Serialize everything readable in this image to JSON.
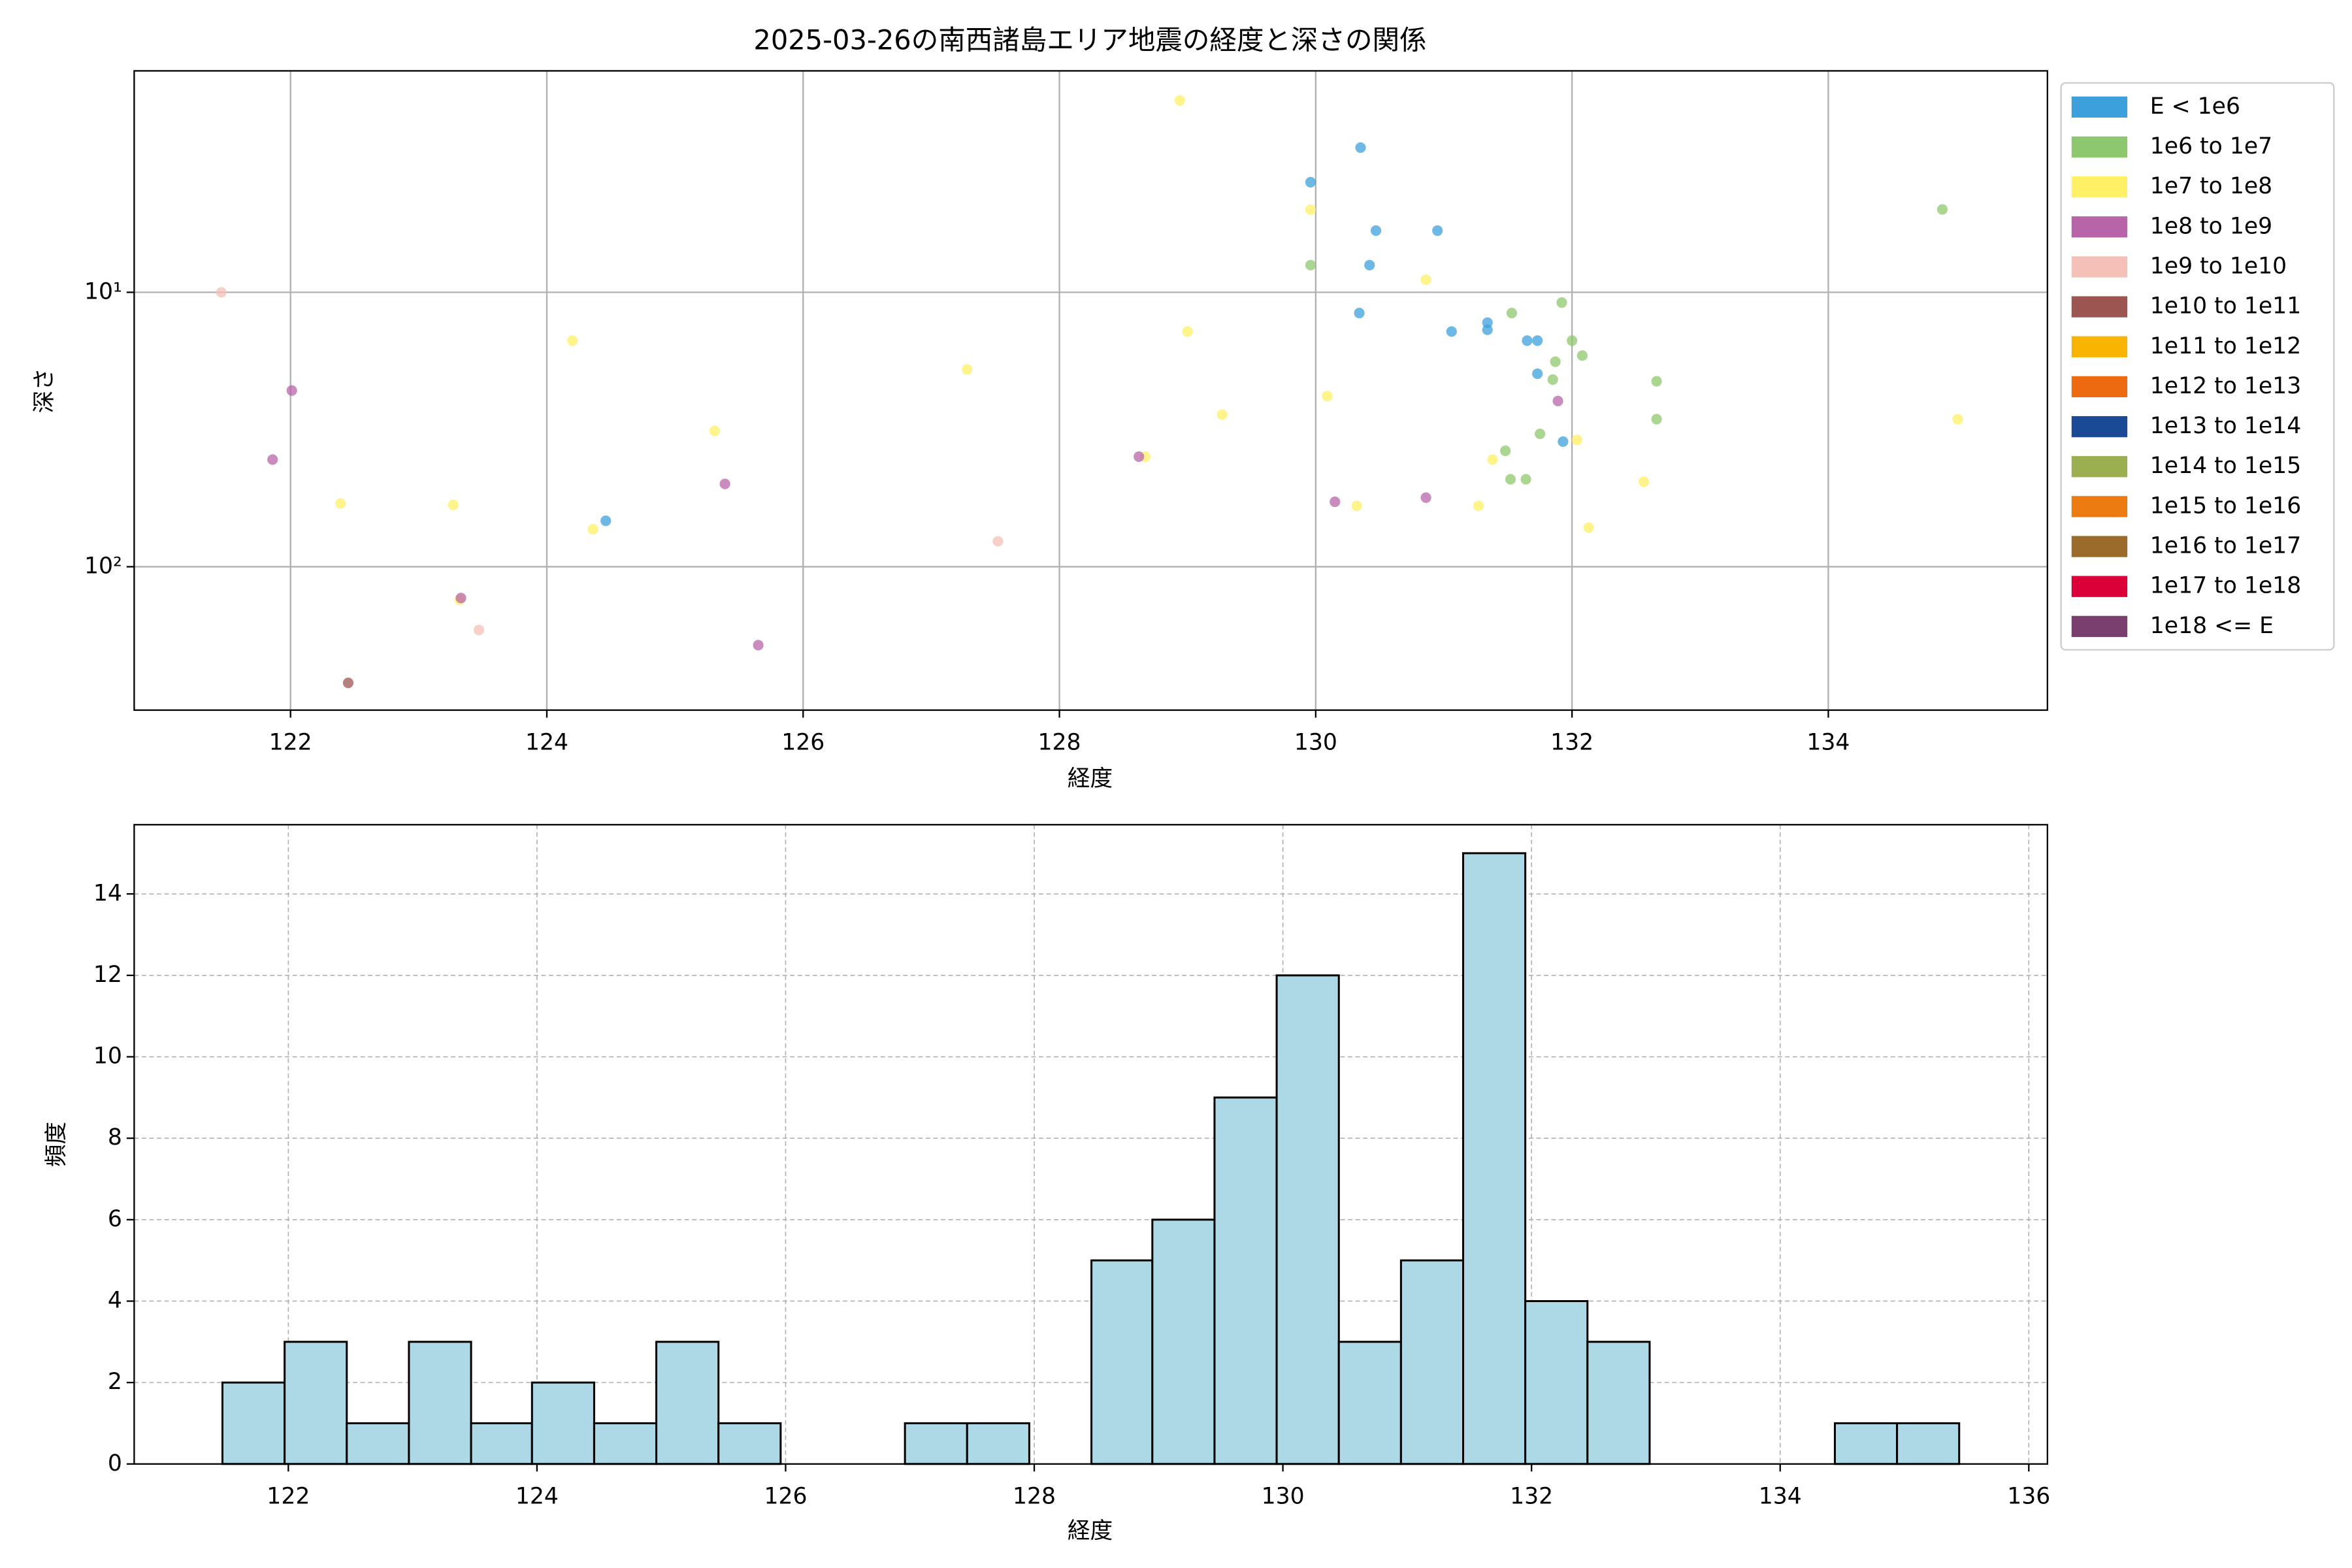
{
  "chart_data": [
    {
      "type": "scatter",
      "title": "2025-03-26の南西諸島エリア地震の経度と深さの関係",
      "x_label": "経度",
      "y_label": "深さ",
      "xlim": [
        120.78,
        135.71
      ],
      "xticks": [
        122,
        124,
        126,
        128,
        130,
        132,
        134
      ],
      "ylim": [
        1.56,
        333
      ],
      "y_log": true,
      "y_inverted": true,
      "yticks": [
        {
          "value": 10,
          "label": "10¹"
        },
        {
          "value": 100,
          "label": "10²"
        }
      ],
      "grid": true,
      "legend": "outside-right",
      "series": [
        {
          "name": "E < 1e6",
          "color": "#3ca0dc",
          "x": [
            130.35,
            129.96,
            130.47,
            130.95,
            130.42,
            130.34,
            131.06,
            131.34,
            131.34,
            131.65,
            131.73,
            131.73,
            131.93,
            124.46
          ],
          "values": [
            2.97,
            3.97,
            5.96,
            5.96,
            7.96,
            11.9,
            13.9,
            12.9,
            13.7,
            15.0,
            15.0,
            19.8,
            35,
            68
          ]
        },
        {
          "name": "1e6 to 1e7",
          "color": "#8ec86e",
          "x": [
            134.89,
            129.96,
            131.92,
            131.53,
            132.0,
            132.08,
            131.87,
            131.85,
            132.66,
            132.66,
            131.75,
            131.48,
            131.52,
            131.64
          ],
          "values": [
            4.99,
            7.96,
            10.9,
            11.9,
            15.0,
            17.0,
            17.9,
            20.8,
            21.1,
            29,
            32.8,
            37.8,
            48,
            48
          ]
        },
        {
          "name": "1e7 to 1e8",
          "color": "#fff066",
          "x": [
            128.94,
            129.96,
            130.86,
            129.0,
            124.2,
            127.28,
            130.09,
            129.27,
            135.01,
            125.31,
            132.04,
            131.38,
            128.67,
            132.56,
            122.39,
            123.27,
            130.32,
            131.27,
            124.36,
            132.13,
            123.32
          ],
          "values": [
            2.0,
            5.0,
            9.0,
            13.9,
            15.0,
            19.1,
            23.9,
            27.9,
            29,
            32,
            34.5,
            40.7,
            39.7,
            49,
            58.8,
            59.5,
            60,
            60,
            73,
            72,
            132
          ]
        },
        {
          "name": "1e8 to 1e9",
          "color": "#b864a8",
          "x": [
            122.01,
            131.89,
            121.86,
            128.62,
            125.39,
            130.15,
            130.86,
            123.33,
            125.65
          ],
          "values": [
            22.8,
            24.9,
            40.7,
            39.7,
            49.9,
            58,
            56,
            130,
            193
          ]
        },
        {
          "name": "1e9 to 1e10",
          "color": "#f5c0b8",
          "x": [
            121.46,
            127.52,
            123.47
          ],
          "values": [
            10,
            80.8,
            170
          ]
        },
        {
          "name": "1e10 to 1e11",
          "color": "#9c5550",
          "x": [
            122.45
          ],
          "values": [
            265
          ]
        },
        {
          "name": "1e11 to 1e12",
          "color": "#f8b400",
          "x": [],
          "values": []
        },
        {
          "name": "1e12 to 1e13",
          "color": "#ee6a10",
          "x": [],
          "values": []
        },
        {
          "name": "1e13 to 1e14",
          "color": "#1a4a96",
          "x": [],
          "values": []
        },
        {
          "name": "1e14 to 1e15",
          "color": "#9caf50",
          "x": [],
          "values": []
        },
        {
          "name": "1e15 to 1e16",
          "color": "#ec7b12",
          "x": [],
          "values": []
        },
        {
          "name": "1e16 to 1e17",
          "color": "#9a6b2a",
          "x": [],
          "values": []
        },
        {
          "name": "1e17 to 1e18",
          "color": "#dc0038",
          "x": [],
          "values": []
        },
        {
          "name": "1e18 <= E",
          "color": "#7a3f6e",
          "x": [],
          "values": []
        }
      ]
    },
    {
      "type": "histogram",
      "x_label": "経度",
      "y_label": "頻度",
      "color": "#add8e6",
      "bins": [
        121.47,
        121.97,
        122.47,
        122.97,
        123.47,
        123.96,
        124.46,
        124.96,
        125.46,
        125.96,
        126.46,
        126.96,
        127.46,
        127.96,
        128.46,
        128.95,
        129.45,
        129.95,
        130.45,
        130.95,
        131.45,
        131.95,
        132.45,
        132.95,
        133.45,
        133.94,
        134.44,
        134.94,
        135.44
      ],
      "values": [
        2,
        3,
        1,
        3,
        1,
        2,
        1,
        3,
        1,
        0,
        0,
        1,
        1,
        0,
        5,
        6,
        9,
        12,
        3,
        5,
        15,
        4,
        3,
        0,
        0,
        0,
        1,
        1
      ],
      "xlim": [
        120.76,
        136.15
      ],
      "xticks": [
        122,
        124,
        126,
        128,
        130,
        132,
        134,
        136
      ],
      "ylim": [
        0,
        15.7
      ],
      "yticks": [
        0,
        2,
        4,
        6,
        8,
        10,
        12,
        14
      ],
      "grid": "dashed"
    }
  ]
}
